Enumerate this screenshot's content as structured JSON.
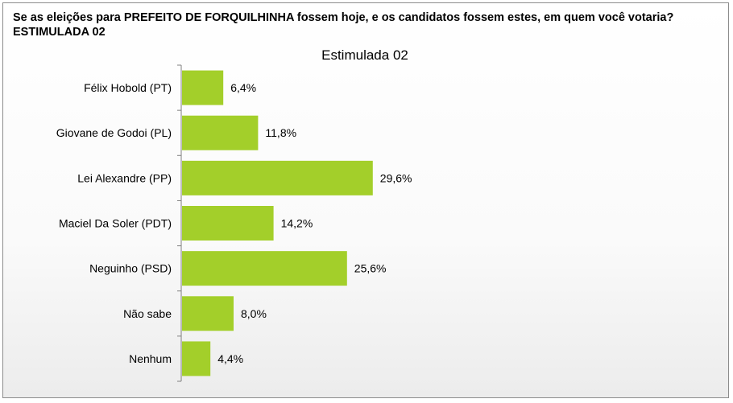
{
  "question": "Se as eleições para PREFEITO DE FORQUILHINHA fossem hoje, e os candidatos fossem estes, em quem você votaria? ESTIMULADA 02",
  "chart_data": {
    "type": "bar",
    "orientation": "horizontal",
    "title": "Estimulada 02",
    "categories": [
      "Félix Hobold (PT)",
      "Giovane de Godoi (PL)",
      "Lei Alexandre (PP)",
      "Maciel Da Soler (PDT)",
      "Neguinho (PSD)",
      "Não sabe",
      "Nenhum"
    ],
    "values": [
      6.4,
      11.8,
      29.6,
      14.2,
      25.6,
      8.0,
      4.4
    ],
    "value_labels": [
      "6,4%",
      "11,8%",
      "29,6%",
      "14,2%",
      "25,6%",
      "8,0%",
      "4,4%"
    ],
    "unit": "%",
    "bar_color": "#a3cf2a",
    "xlim": [
      0,
      100
    ],
    "grid": false,
    "legend": "none"
  }
}
